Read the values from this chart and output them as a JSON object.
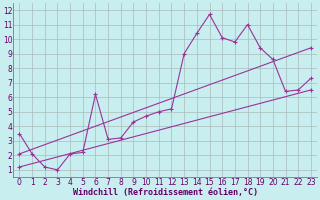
{
  "main_x": [
    0,
    1,
    2,
    3,
    4,
    5,
    6,
    7,
    8,
    9,
    10,
    11,
    12,
    13,
    14,
    15,
    16,
    17,
    18,
    19,
    20,
    21,
    22,
    23
  ],
  "main_y": [
    3.5,
    2.1,
    1.2,
    1.0,
    2.1,
    2.2,
    6.2,
    3.1,
    3.2,
    4.3,
    4.7,
    5.0,
    5.2,
    9.0,
    10.4,
    11.7,
    10.1,
    9.8,
    11.0,
    9.4,
    8.6,
    6.4,
    6.5,
    7.3
  ],
  "trend1_x": [
    0,
    23
  ],
  "trend1_y": [
    2.1,
    9.4
  ],
  "trend2_x": [
    0,
    23
  ],
  "trend2_y": [
    1.2,
    6.5
  ],
  "line_color": "#993399",
  "bg_color": "#c8eef0",
  "grid_color": "#aabbbb",
  "xlabel": "Windchill (Refroidissement éolien,°C)",
  "xlim": [
    -0.5,
    23.5
  ],
  "ylim": [
    0.5,
    12.5
  ],
  "xticks": [
    0,
    1,
    2,
    3,
    4,
    5,
    6,
    7,
    8,
    9,
    10,
    11,
    12,
    13,
    14,
    15,
    16,
    17,
    18,
    19,
    20,
    21,
    22,
    23
  ],
  "yticks": [
    1,
    2,
    3,
    4,
    5,
    6,
    7,
    8,
    9,
    10,
    11,
    12
  ],
  "tick_fontsize": 5.5,
  "xlabel_fontsize": 6.0
}
